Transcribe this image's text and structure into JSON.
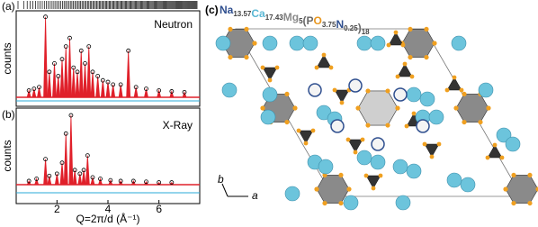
{
  "panel_a": {
    "label": "(a)",
    "radiation": "Neutron"
  },
  "panel_b": {
    "label": "(b)",
    "radiation": "X-Ray"
  },
  "panel_c": {
    "label": "(c)",
    "formula": [
      {
        "text": "Na",
        "sub": "13.57",
        "color": "#2f4f8f"
      },
      {
        "text": "Ca",
        "sub": "17.43",
        "color": "#5bb8d4"
      },
      {
        "text": "Mg",
        "sub": "5",
        "color": "#8a8a8a"
      },
      {
        "text": "(P",
        "sub": "",
        "color": "#6a6a6a"
      },
      {
        "text": "O",
        "sub": "3.75",
        "color": "#e8961e"
      },
      {
        "text": "N",
        "sub": "0.25",
        "color": "#2f4f8f"
      },
      {
        "text": ")",
        "sub": "18",
        "color": "#6a6a6a"
      }
    ],
    "axis_b": "b",
    "axis_a": "a"
  },
  "chart_data": [
    {
      "type": "peaks",
      "ylabel": "counts",
      "color": "#e0202a",
      "x": [
        0.9,
        1.1,
        1.3,
        1.55,
        1.7,
        1.9,
        2.05,
        2.2,
        2.35,
        2.5,
        2.65,
        2.8,
        2.95,
        3.1,
        3.25,
        3.4,
        3.6,
        3.8,
        4.0,
        4.2,
        4.5,
        4.8,
        5.1,
        5.5,
        6.0,
        6.5,
        7.0
      ],
      "values": [
        8,
        10,
        12,
        95,
        30,
        40,
        25,
        45,
        60,
        70,
        35,
        30,
        55,
        40,
        60,
        30,
        25,
        20,
        18,
        15,
        15,
        55,
        12,
        10,
        8,
        7,
        6
      ],
      "xlim": [
        0.4,
        7.6
      ],
      "ylim": [
        0,
        100
      ]
    },
    {
      "type": "peaks",
      "ylabel": "counts",
      "color": "#e0202a",
      "xlabel": "Q=2π/d (Å⁻¹)",
      "x": [
        0.9,
        1.2,
        1.55,
        1.7,
        2.0,
        2.2,
        2.35,
        2.55,
        2.7,
        2.9,
        3.05,
        3.2,
        3.4,
        3.7,
        4.1,
        4.5,
        5.0,
        5.5,
        6.0,
        6.5
      ],
      "values": [
        5,
        8,
        35,
        12,
        15,
        30,
        70,
        95,
        20,
        15,
        20,
        40,
        10,
        8,
        6,
        5,
        5,
        4,
        3,
        3
      ],
      "xlim": [
        0.4,
        7.6
      ],
      "ylim": [
        0,
        100
      ],
      "xticks": [
        2,
        4,
        6
      ]
    }
  ]
}
